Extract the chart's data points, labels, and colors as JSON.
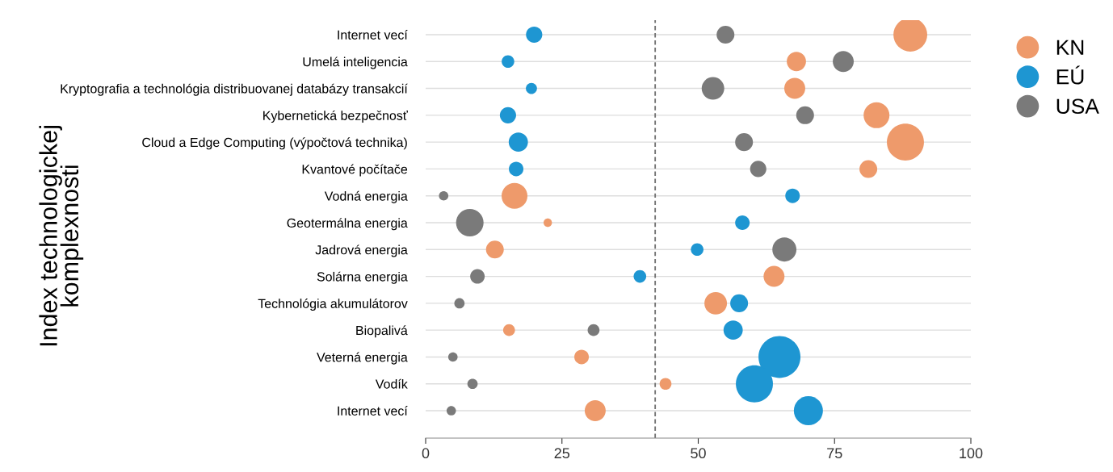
{
  "chart_data": {
    "type": "bubble",
    "ylabel": "Index technologickej\nkomplexnosti",
    "categories": [
      "Internet vecí",
      "Umelá inteligencia",
      "Kryptografia a technológia distribuovanej databázy transakcií",
      "Kybernetická bezpečnosť",
      "Cloud a Edge Computing (výpočtová technika)",
      "Kvantové počítače",
      "Vodná energia",
      "Geotermálna energia",
      "Jadrová energia",
      "Solárna energia",
      "Technológia akumulátorov",
      "Biopalivá",
      "Veterná energia",
      "Vodík",
      "Internet vecí"
    ],
    "orientation": "horizontal",
    "series": [
      {
        "name": "KN",
        "color": "#ee9a6b",
        "values": [
          88.9,
          68.0,
          67.7,
          82.7,
          88.0,
          81.2,
          16.3,
          22.4,
          12.7,
          63.9,
          53.2,
          15.3,
          28.6,
          44.0,
          31.1
        ],
        "sizes": [
          0.65,
          0.21,
          0.25,
          0.38,
          0.78,
          0.18,
          0.38,
          0.04,
          0.18,
          0.25,
          0.29,
          0.08,
          0.12,
          0.08,
          0.25
        ]
      },
      {
        "name": "EÚ",
        "color": "#1e96d2",
        "values": [
          19.9,
          15.1,
          19.4,
          15.1,
          17.0,
          16.6,
          67.3,
          58.1,
          49.8,
          39.3,
          57.5,
          56.4,
          64.9,
          60.3,
          70.2
        ],
        "sizes": [
          0.15,
          0.09,
          0.07,
          0.15,
          0.21,
          0.12,
          0.12,
          0.12,
          0.09,
          0.09,
          0.18,
          0.21,
          1,
          0.78,
          0.48
        ]
      },
      {
        "name": "USA",
        "color": "#7a7a7a",
        "values": [
          55.0,
          76.6,
          52.7,
          69.6,
          58.4,
          61.0,
          3.3,
          8.1,
          65.8,
          9.5,
          6.2,
          30.8,
          5.0,
          8.6,
          4.7
        ],
        "sizes": [
          0.18,
          0.25,
          0.29,
          0.18,
          0.18,
          0.15,
          0.05,
          0.43,
          0.33,
          0.12,
          0.06,
          0.08,
          0.05,
          0.06,
          0.05
        ]
      }
    ],
    "xlim": [
      0,
      100
    ],
    "xticks": [
      0,
      25,
      50,
      75,
      100
    ],
    "ref_lines": [
      {
        "axis": "x",
        "value": 42.1,
        "color": "#707070",
        "line_style": "dashed"
      }
    ],
    "grid": "y",
    "legend": "top right"
  }
}
